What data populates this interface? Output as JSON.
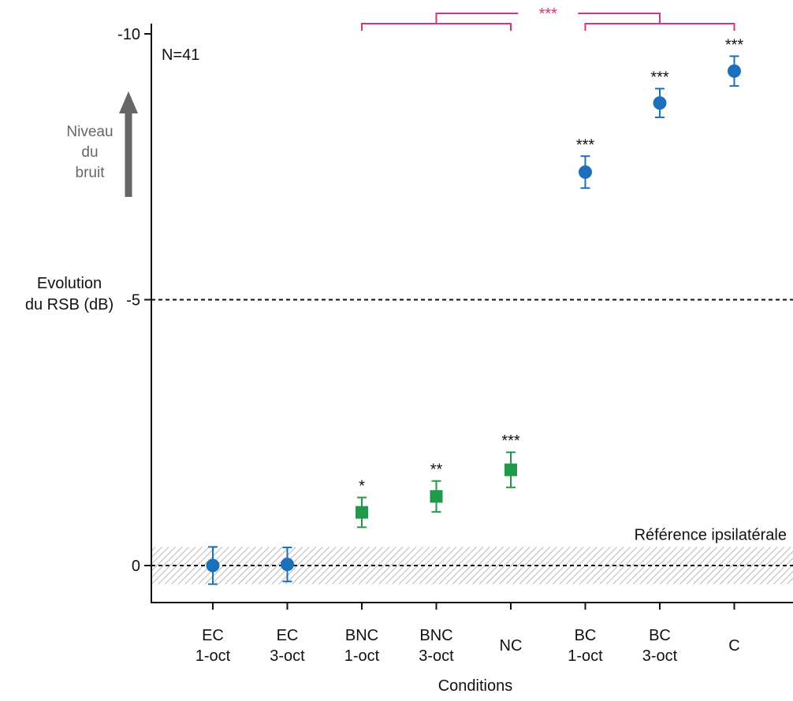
{
  "chart_data": {
    "type": "scatter",
    "n_label": "N=41",
    "ylabel_lines": [
      "Evolution",
      "du RSB (dB)"
    ],
    "xlabel": "Conditions",
    "y_axis_reversed": true,
    "ylim": [
      0.8,
      -10.2
    ],
    "yticks": [
      {
        "value": -10,
        "label": "-10"
      },
      {
        "value": -5,
        "label": "-5"
      },
      {
        "value": 0,
        "label": "0"
      }
    ],
    "reference_lines": [
      -5,
      0
    ],
    "reference_band": {
      "from": -0.35,
      "to": 0.35,
      "label": "Référence ipsilatérale"
    },
    "noise_arrow_lines": [
      "Niveau",
      "du",
      "bruit"
    ],
    "categories": [
      {
        "line1": "EC",
        "line2": "1-oct"
      },
      {
        "line1": "EC",
        "line2": "3-oct"
      },
      {
        "line1": "BNC",
        "line2": "1-oct"
      },
      {
        "line1": "BNC",
        "line2": "3-oct"
      },
      {
        "line1": "NC",
        "line2": ""
      },
      {
        "line1": "BC",
        "line2": "1-oct"
      },
      {
        "line1": "BC",
        "line2": "3-oct"
      },
      {
        "line1": "C",
        "line2": ""
      }
    ],
    "points": [
      {
        "value": 0.0,
        "err": 0.35,
        "marker": "circle",
        "color": "#1b6fbb",
        "sig": ""
      },
      {
        "value": -0.02,
        "err": 0.32,
        "marker": "circle",
        "color": "#1b6fbb",
        "sig": ""
      },
      {
        "value": -1.0,
        "err": 0.28,
        "marker": "square",
        "color": "#1e9a48",
        "sig": "*"
      },
      {
        "value": -1.3,
        "err": 0.29,
        "marker": "square",
        "color": "#1e9a48",
        "sig": "**"
      },
      {
        "value": -1.8,
        "err": 0.33,
        "marker": "square",
        "color": "#1e9a48",
        "sig": "***"
      },
      {
        "value": -7.4,
        "err": 0.3,
        "marker": "circle",
        "color": "#1b6fbb",
        "sig": "***"
      },
      {
        "value": -8.7,
        "err": 0.27,
        "marker": "circle",
        "color": "#1b6fbb",
        "sig": "***"
      },
      {
        "value": -9.3,
        "err": 0.28,
        "marker": "circle",
        "color": "#1b6fbb",
        "sig": "***"
      }
    ],
    "comparison": {
      "label": "***",
      "color": "#d63384",
      "group_left": [
        2,
        4
      ],
      "group_right": [
        5,
        7
      ]
    },
    "colors": {
      "circle": "#1b6fbb",
      "square": "#1e9a48",
      "arrow": "#666666",
      "comparison": "#d63384"
    }
  }
}
